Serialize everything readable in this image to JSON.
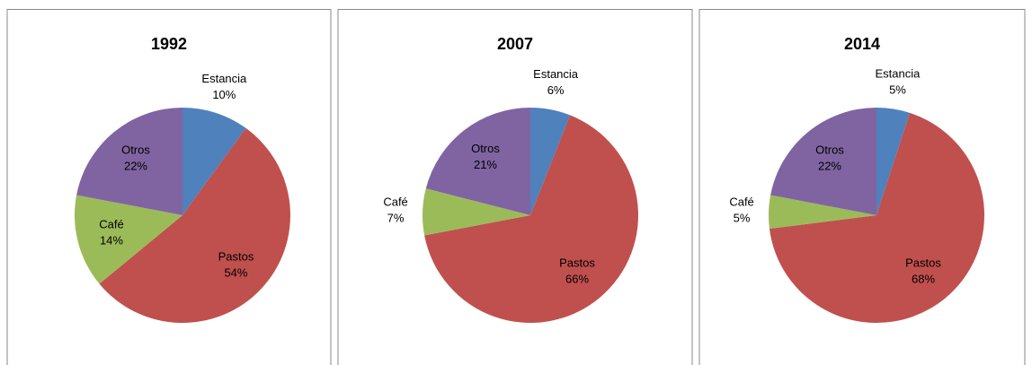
{
  "chart_data": [
    {
      "type": "pie",
      "title": "1992",
      "categories": [
        "Estancia",
        "Pastos",
        "Café",
        "Otros"
      ],
      "values": [
        10,
        54,
        14,
        22
      ],
      "value_labels": [
        "10%",
        "54%",
        "14%",
        "22%"
      ],
      "colors": [
        "#4f81bd",
        "#c0504d",
        "#9bbb59",
        "#8064a2"
      ]
    },
    {
      "type": "pie",
      "title": "2007",
      "categories": [
        "Estancia",
        "Pastos",
        "Café",
        "Otros"
      ],
      "values": [
        6,
        66,
        7,
        21
      ],
      "value_labels": [
        "6%",
        "66%",
        "7%",
        "21%"
      ],
      "colors": [
        "#4f81bd",
        "#c0504d",
        "#9bbb59",
        "#8064a2"
      ]
    },
    {
      "type": "pie",
      "title": "2014",
      "categories": [
        "Estancia",
        "Pastos",
        "Café",
        "Otros"
      ],
      "values": [
        5,
        68,
        5,
        22
      ],
      "value_labels": [
        "5%",
        "68%",
        "5%",
        "22%"
      ],
      "colors": [
        "#4f81bd",
        "#c0504d",
        "#9bbb59",
        "#8064a2"
      ]
    }
  ]
}
